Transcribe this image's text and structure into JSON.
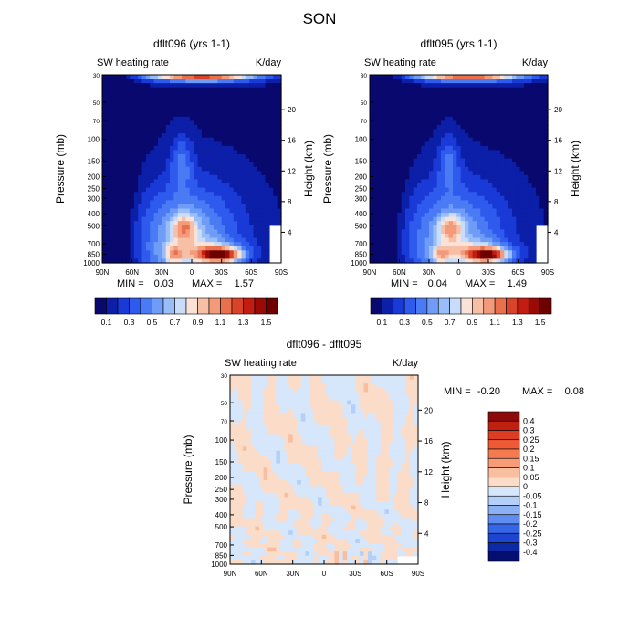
{
  "figure": {
    "title": "SON"
  },
  "panels": [
    {
      "id": "dflt096",
      "title": "dflt096 (yrs 1-1)",
      "left_label": "SW heating rate",
      "right_label": "K/day",
      "ylabel": "Pressure (mb)",
      "ylabel_right": "Height (km)",
      "min_label": "MIN =",
      "min_value": "0.03",
      "max_label": "MAX =",
      "max_value": "1.57",
      "peak": 1.57
    },
    {
      "id": "dflt095",
      "title": "dflt095 (yrs 1-1)",
      "left_label": "SW heating rate",
      "right_label": "K/day",
      "ylabel": "Pressure (mb)",
      "ylabel_right": "Height (km)",
      "min_label": "MIN =",
      "min_value": "0.04",
      "max_label": "MAX =",
      "max_value": "1.49",
      "peak": 1.49
    },
    {
      "id": "diff",
      "title": "dflt096 - dflt095",
      "left_label": "SW heating rate",
      "right_label": "K/day",
      "ylabel": "Pressure (mb)",
      "ylabel_right": "Height (km)",
      "min_label": "MIN =",
      "min_value": "-0.20",
      "max_label": "MAX =",
      "max_value": "0.08"
    }
  ],
  "chart_data": [
    {
      "type": "heatmap",
      "panel": "dflt096",
      "x_ticks": [
        "90N",
        "60N",
        "30N",
        "0",
        "30S",
        "60S",
        "90S"
      ],
      "x_tick_values": [
        90,
        60,
        30,
        0,
        -30,
        -60,
        -90
      ],
      "y_ticks": [
        "30",
        "50",
        "70",
        "100",
        "150",
        "200",
        "250",
        "300",
        "400",
        "500",
        "700",
        "850",
        "1000"
      ],
      "y_tick_values": [
        30,
        50,
        70,
        100,
        150,
        200,
        250,
        300,
        400,
        500,
        700,
        850,
        1000
      ],
      "y_right_ticks": [
        "20",
        "16",
        "12",
        "8",
        "4"
      ],
      "y_right_tick_values": [
        20,
        16,
        12,
        8,
        4
      ],
      "xlim": [
        90,
        -90
      ],
      "ylim": [
        1000,
        30
      ],
      "y_scale": "log",
      "min": 0.03,
      "max": 1.57
    },
    {
      "type": "heatmap",
      "panel": "dflt095",
      "x_ticks": [
        "90N",
        "60N",
        "30N",
        "0",
        "30S",
        "60S",
        "90S"
      ],
      "x_tick_values": [
        90,
        60,
        30,
        0,
        -30,
        -60,
        -90
      ],
      "y_ticks": [
        "30",
        "50",
        "70",
        "100",
        "150",
        "200",
        "250",
        "300",
        "400",
        "500",
        "700",
        "850",
        "1000"
      ],
      "y_tick_values": [
        30,
        50,
        70,
        100,
        150,
        200,
        250,
        300,
        400,
        500,
        700,
        850,
        1000
      ],
      "y_right_ticks": [
        "20",
        "16",
        "12",
        "8",
        "4"
      ],
      "y_right_tick_values": [
        20,
        16,
        12,
        8,
        4
      ],
      "xlim": [
        90,
        -90
      ],
      "ylim": [
        1000,
        30
      ],
      "y_scale": "log",
      "min": 0.04,
      "max": 1.49
    },
    {
      "type": "heatmap",
      "panel": "diff",
      "x_ticks": [
        "90N",
        "60N",
        "30N",
        "0",
        "30S",
        "60S",
        "90S"
      ],
      "x_tick_values": [
        90,
        60,
        30,
        0,
        -30,
        -60,
        -90
      ],
      "y_ticks": [
        "30",
        "50",
        "70",
        "100",
        "150",
        "200",
        "250",
        "300",
        "400",
        "500",
        "700",
        "850",
        "1000"
      ],
      "y_tick_values": [
        30,
        50,
        70,
        100,
        150,
        200,
        250,
        300,
        400,
        500,
        700,
        850,
        1000
      ],
      "y_right_ticks": [
        "20",
        "16",
        "12",
        "8",
        "4"
      ],
      "y_right_tick_values": [
        20,
        16,
        12,
        8,
        4
      ],
      "xlim": [
        90,
        -90
      ],
      "ylim": [
        1000,
        30
      ],
      "y_scale": "log",
      "min": -0.2,
      "max": 0.08
    }
  ],
  "colorbars": {
    "abs": {
      "levels": [
        0.1,
        0.2,
        0.3,
        0.4,
        0.5,
        0.6,
        0.7,
        0.8,
        0.9,
        1.0,
        1.1,
        1.2,
        1.3,
        1.4,
        1.5
      ],
      "labels": [
        "0.1",
        "0.3",
        "0.5",
        "0.7",
        "0.9",
        "1.1",
        "1.3",
        "1.5"
      ],
      "colors": [
        "#08086e",
        "#0c1fa8",
        "#1a3ad8",
        "#2e5aee",
        "#4a7bf4",
        "#6e9cf7",
        "#98bdf9",
        "#c9ddfb",
        "#fbe2d6",
        "#f7bfa6",
        "#f29a7a",
        "#ea6f4d",
        "#d9432a",
        "#c21d12",
        "#9c0a07",
        "#6e0000"
      ]
    },
    "diff": {
      "labels": [
        "0.4",
        "0.3",
        "0.25",
        "0.2",
        "0.15",
        "0.1",
        "0.05",
        "0",
        "-0.05",
        "-0.1",
        "-0.15",
        "-0.2",
        "-0.25",
        "-0.3",
        "-0.4"
      ],
      "colors": [
        "#8e0a0a",
        "#c0200f",
        "#dc3d22",
        "#ef5a34",
        "#f47b50",
        "#f79c76",
        "#f9bd9f",
        "#fbdcc8",
        "#d6e6fb",
        "#b4cff8",
        "#8cb0f4",
        "#5f8cef",
        "#3566e6",
        "#1d45cf",
        "#0c2aa6",
        "#050f72"
      ]
    }
  }
}
